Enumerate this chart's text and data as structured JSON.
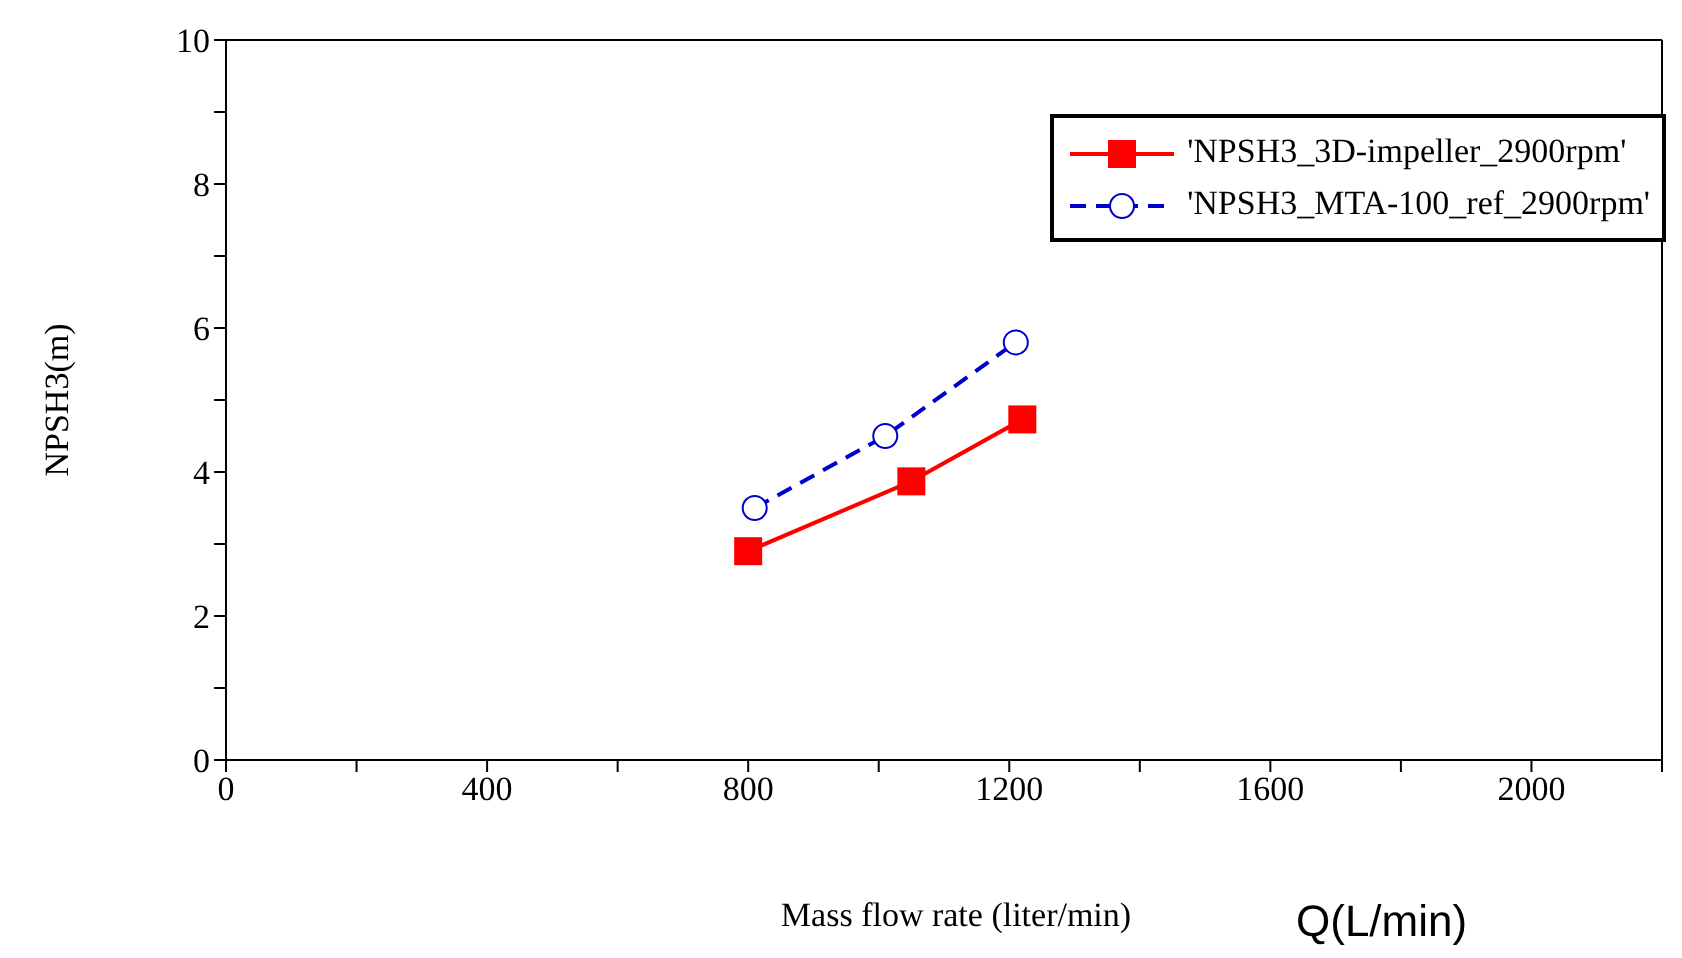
{
  "chart_data": {
    "type": "line",
    "xlabel": "Mass flow rate (liter/min)",
    "ylabel": "NPSH3(m)",
    "annotations": [
      "Q(L/min)"
    ],
    "xlim": [
      0,
      2200
    ],
    "ylim": [
      0,
      10
    ],
    "xticks": [
      0,
      {
        "value": 200,
        "label": null
      },
      400,
      {
        "value": 600,
        "label": null
      },
      800,
      {
        "value": 1000,
        "label": null
      },
      1200,
      {
        "value": 1400,
        "label": null
      },
      1600,
      {
        "value": 1800,
        "label": null
      },
      2000,
      {
        "value": 2200,
        "label": null
      }
    ],
    "yticks": [
      0,
      {
        "value": 1,
        "label": null
      },
      2,
      {
        "value": 3,
        "label": null
      },
      4,
      {
        "value": 5,
        "label": null
      },
      6,
      {
        "value": 7,
        "label": null
      },
      8,
      {
        "value": 9,
        "label": null
      },
      10
    ],
    "grid": false,
    "legend": "top right",
    "series": [
      {
        "name": "'NPSH3_3D-impeller_2900rpm'",
        "color": "#ff0000",
        "x": [
          800,
          1050,
          1220
        ],
        "values": [
          2.9,
          3.87,
          4.73
        ],
        "marker": "square",
        "line_style": "solid"
      },
      {
        "name": "'NPSH3_MTA-100_ref_2900rpm'",
        "color": "#0000cc",
        "x": [
          810,
          1010,
          1210
        ],
        "values": [
          3.5,
          4.5,
          5.8
        ],
        "marker": "circle",
        "line_style": "dashed"
      }
    ]
  }
}
